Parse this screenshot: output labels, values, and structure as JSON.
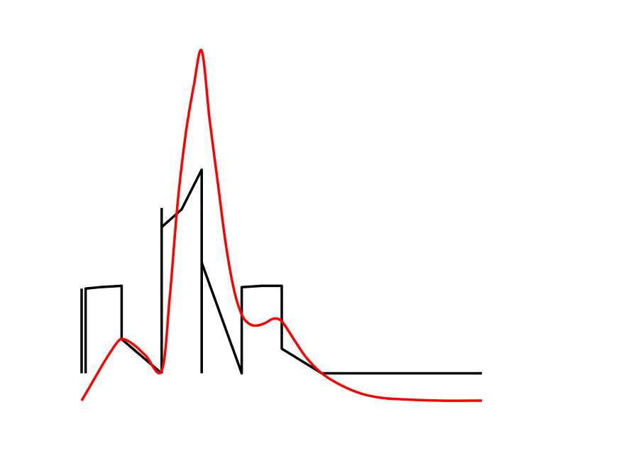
{
  "chart_data": {
    "type": "line",
    "title": "",
    "xlabel": "",
    "ylabel": "",
    "xlim": [
      0,
      10
    ],
    "ylim": [
      -0.2,
      2.3
    ],
    "grid": false,
    "axes_visible": false,
    "series": [
      {
        "color": "#000000",
        "style": "piecewise",
        "segments": [
          [
            [
              0,
              0
            ],
            [
              0,
              0.62
            ]
          ],
          [
            [
              0.1,
              0
            ],
            [
              0.1,
              0.62
            ],
            [
              0.45,
              0.63
            ],
            [
              1.0,
              0.64
            ],
            [
              1.0,
              0.25
            ],
            [
              2.0,
              0.0
            ]
          ],
          [
            [
              2.0,
              0
            ],
            [
              2.0,
              1.21
            ]
          ],
          [
            [
              2.0,
              1.07
            ],
            [
              2.5,
              1.2
            ],
            [
              3.0,
              1.49
            ],
            [
              3.0,
              0.0
            ]
          ],
          [
            [
              3.0,
              0.81
            ],
            [
              4.0,
              0.0
            ],
            [
              4.0,
              0.63
            ],
            [
              4.5,
              0.64
            ],
            [
              5.0,
              0.64
            ],
            [
              5.0,
              0.18
            ],
            [
              6.0,
              0.0
            ],
            [
              10.0,
              0.0
            ]
          ]
        ]
      },
      {
        "color": "#ff0000",
        "style": "smooth",
        "x": [
          0,
          0.3,
          0.6,
          0.9,
          1.05,
          1.3,
          1.6,
          2.0,
          2.2,
          2.4,
          2.6,
          2.8,
          3.0,
          3.2,
          3.4,
          3.6,
          3.8,
          4.0,
          4.2,
          4.4,
          4.6,
          4.8,
          5.0,
          5.3,
          5.6,
          6.0,
          6.5,
          7.0,
          7.5,
          8.0,
          9.0,
          10.0
        ],
        "y": [
          -0.2,
          -0.05,
          0.1,
          0.23,
          0.25,
          0.21,
          0.13,
          0.02,
          0.55,
          1.25,
          1.75,
          2.1,
          2.36,
          1.85,
          1.4,
          0.95,
          0.62,
          0.43,
          0.36,
          0.35,
          0.37,
          0.4,
          0.38,
          0.25,
          0.12,
          0.0,
          -0.09,
          -0.15,
          -0.18,
          -0.19,
          -0.2,
          -0.2
        ]
      }
    ]
  }
}
